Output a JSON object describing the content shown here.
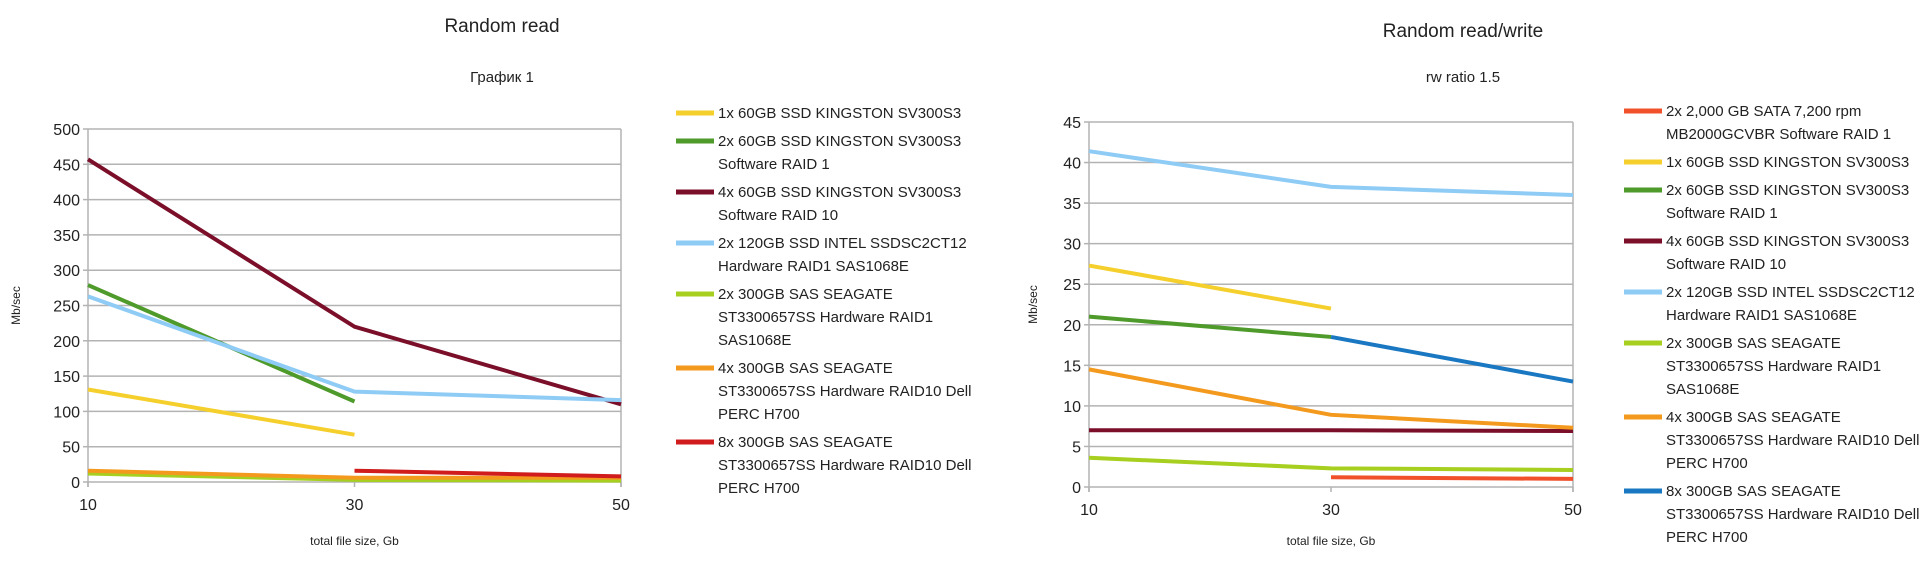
{
  "chart_data": [
    {
      "type": "line",
      "title": "Random read",
      "subtitle": "График 1",
      "xlabel": "total file size, Gb",
      "ylabel": "Mb/sec",
      "x": [
        10,
        30,
        50
      ],
      "xticks": [
        "10",
        "30",
        "50"
      ],
      "ylim": [
        0,
        500
      ],
      "yticks": [
        "0",
        "50",
        "100",
        "150",
        "200",
        "250",
        "300",
        "350",
        "400",
        "450",
        "500"
      ],
      "grid": true,
      "legend_position": "right",
      "series": [
        {
          "name": "1x 60GB SSD KINGSTON SV300S3",
          "lines": [
            "1x 60GB SSD KINGSTON SV300S3"
          ],
          "color": "#f5cf2c",
          "values": [
            131,
            67,
            null
          ]
        },
        {
          "name": "2x 60GB SSD KINGSTON SV300S3 Software RAID 1",
          "lines": [
            "2x 60GB SSD KINGSTON SV300S3",
            "Software RAID 1"
          ],
          "color": "#4e9a2a",
          "values": [
            279,
            114,
            null
          ]
        },
        {
          "name": "4x 60GB SSD KINGSTON SV300S3 Software RAID 10",
          "lines": [
            "4x 60GB SSD KINGSTON SV300S3",
            "Software RAID 10"
          ],
          "color": "#7b0f2a",
          "values": [
            457,
            220,
            110
          ]
        },
        {
          "name": "2x 120GB SSD INTEL SSDSC2CT12 Hardware RAID1 SAS1068E",
          "lines": [
            "2x 120GB SSD INTEL SSDSC2CT12",
            "Hardware RAID1 SAS1068E"
          ],
          "color": "#8ecbf5",
          "values": [
            263,
            128,
            116
          ]
        },
        {
          "name": "2x 300GB SAS SEAGATE ST3300657SS Hardware RAID1 SAS1068E",
          "lines": [
            "2x 300GB SAS SEAGATE",
            "ST3300657SS Hardware RAID1",
            "SAS1068E"
          ],
          "color": "#a6cf1f",
          "values": [
            12,
            3,
            2
          ]
        },
        {
          "name": "4x 300GB SAS SEAGATE ST3300657SS Hardware RAID10 Dell PERC H700",
          "lines": [
            "4x 300GB SAS SEAGATE",
            "ST3300657SS Hardware RAID10 Dell",
            "PERC H700"
          ],
          "color": "#f39a1e",
          "values": [
            16,
            6,
            6
          ]
        },
        {
          "name": "8x 300GB SAS SEAGATE ST3300657SS Hardware RAID10 Dell PERC H700",
          "lines": [
            "8x 300GB SAS SEAGATE",
            "ST3300657SS Hardware RAID10 Dell",
            "PERC H700"
          ],
          "color": "#d01c1c",
          "values": [
            null,
            16,
            8
          ]
        }
      ]
    },
    {
      "type": "line",
      "title": "Random read/write",
      "subtitle": "rw ratio 1.5",
      "xlabel": "total file size, Gb",
      "ylabel": "Mb/sec",
      "x": [
        10,
        30,
        50
      ],
      "xticks": [
        "10",
        "30",
        "50"
      ],
      "ylim": [
        0,
        45
      ],
      "yticks": [
        "0",
        "5",
        "10",
        "15",
        "20",
        "25",
        "30",
        "35",
        "40",
        "45"
      ],
      "grid": true,
      "legend_position": "right",
      "series": [
        {
          "name": "2x 2,000 GB SATA 7,200 rpm MB2000GCVBR Software RAID 1",
          "lines": [
            "2x 2,000 GB SATA 7,200 rpm",
            "MB2000GCVBR Software RAID 1"
          ],
          "color": "#f0502a",
          "values": [
            null,
            1.2,
            1.0
          ]
        },
        {
          "name": "1x 60GB SSD KINGSTON SV300S3",
          "lines": [
            "1x 60GB SSD KINGSTON SV300S3"
          ],
          "color": "#f5cf2c",
          "values": [
            27.3,
            22,
            null
          ]
        },
        {
          "name": "2x 60GB SSD KINGSTON SV300S3 Software RAID 1",
          "lines": [
            "2x 60GB SSD KINGSTON SV300S3",
            "Software RAID 1"
          ],
          "color": "#4e9a2a",
          "values": [
            21,
            18.5,
            null
          ]
        },
        {
          "name": "4x 60GB SSD KINGSTON SV300S3 Software RAID 10",
          "lines": [
            "4x 60GB SSD KINGSTON SV300S3",
            "Software RAID 10"
          ],
          "color": "#7b0f2a",
          "values": [
            7,
            7,
            6.9
          ]
        },
        {
          "name": "2x 120GB SSD INTEL SSDSC2CT12 Hardware RAID1 SAS1068E",
          "lines": [
            "2x 120GB SSD INTEL SSDSC2CT12",
            "Hardware RAID1 SAS1068E"
          ],
          "color": "#8ecbf5",
          "values": [
            41.4,
            37,
            36
          ]
        },
        {
          "name": "2x 300GB SAS SEAGATE ST3300657SS Hardware RAID1 SAS1068E",
          "lines": [
            "2x 300GB SAS SEAGATE",
            "ST3300657SS Hardware RAID1",
            "SAS1068E"
          ],
          "color": "#a6cf1f",
          "values": [
            3.6,
            2.3,
            2.1
          ]
        },
        {
          "name": "4x 300GB SAS SEAGATE ST3300657SS Hardware RAID10 Dell PERC H700",
          "lines": [
            "4x 300GB SAS SEAGATE",
            "ST3300657SS Hardware RAID10 Dell",
            "PERC H700"
          ],
          "color": "#f39a1e",
          "values": [
            14.5,
            8.9,
            7.3
          ]
        },
        {
          "name": "8x 300GB SAS SEAGATE ST3300657SS Hardware RAID10 Dell PERC H700",
          "lines": [
            "8x 300GB SAS SEAGATE",
            "ST3300657SS Hardware RAID10 Dell",
            "PERC H700"
          ],
          "color": "#1a78c2",
          "values": [
            null,
            18.5,
            13
          ]
        }
      ]
    }
  ]
}
